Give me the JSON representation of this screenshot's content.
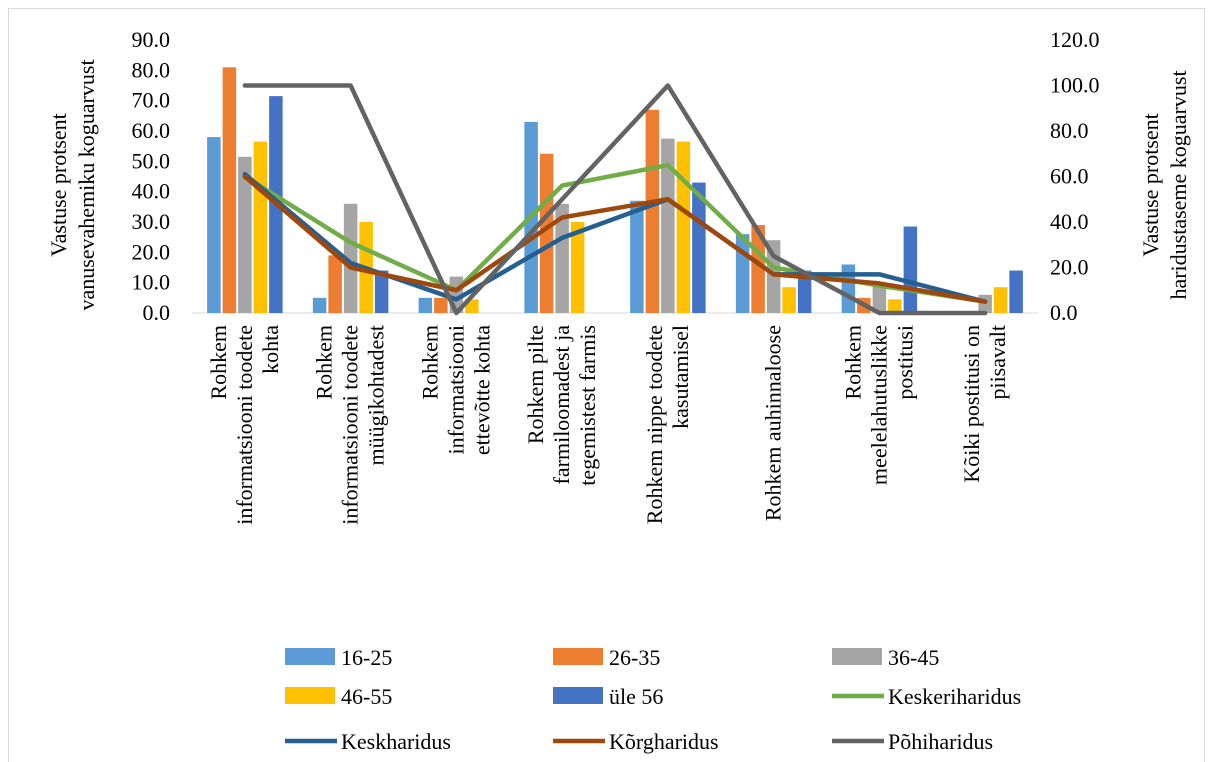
{
  "chart_data": {
    "type": "bar",
    "categories": [
      [
        "Rohkem",
        "informatsiooni toodete",
        "kohta"
      ],
      [
        "Rohkem",
        "informatsiooni toodete",
        "müügikohtadest"
      ],
      [
        "Rohkem",
        "informatsiooni",
        "ettevõtte kohta"
      ],
      [
        "Rohkem pilte",
        "farmiloomadest ja",
        "tegemistest farmis"
      ],
      [
        "Rohkem nippe toodete",
        "kasutamisel"
      ],
      [
        "Rohkem auhinnaloose"
      ],
      [
        "Rohkem",
        "meelelahutuslikke",
        "postitusi"
      ],
      [
        "Kõiki postitusi on",
        "piisavalt"
      ]
    ],
    "y_left": {
      "label": [
        "Vastuse protsent",
        "vanusevahemiku koguarvust"
      ],
      "ticks": [
        "0.0",
        "10.0",
        "20.0",
        "30.0",
        "40.0",
        "50.0",
        "60.0",
        "70.0",
        "80.0",
        "90.0"
      ],
      "ylim": [
        0,
        90
      ]
    },
    "y_right": {
      "label": [
        "Vastuse protsent",
        "haridustaseme koguarvust"
      ],
      "ticks": [
        "0.0",
        "20.0",
        "40.0",
        "60.0",
        "80.0",
        "100.0",
        "120.0"
      ],
      "ylim": [
        0,
        120
      ]
    },
    "bar_series": [
      {
        "name": "16-25",
        "color": "#5B9BD5",
        "values": [
          58,
          5,
          5,
          63,
          37,
          26,
          16,
          0
        ]
      },
      {
        "name": "26-35",
        "color": "#ED7D31",
        "values": [
          81,
          19,
          5,
          52.5,
          67,
          29,
          5,
          0
        ]
      },
      {
        "name": "36-45",
        "color": "#A5A5A5",
        "values": [
          51.5,
          36,
          12,
          36,
          57.5,
          24,
          9,
          6
        ]
      },
      {
        "name": "46-55",
        "color": "#FFC000",
        "values": [
          56.5,
          30,
          4.5,
          30,
          56.5,
          8.5,
          4.5,
          8.5
        ]
      },
      {
        "name": "üle 56",
        "color": "#4472C4",
        "values": [
          71.5,
          14,
          0,
          0,
          43,
          14,
          28.5,
          14
        ]
      }
    ],
    "line_series": [
      {
        "name": "Keskeriharidus",
        "color": "#70AD47",
        "axis": "right",
        "values": [
          60,
          31,
          10,
          56,
          65,
          20,
          12,
          5
        ]
      },
      {
        "name": "Keskharidus",
        "color": "#255E91",
        "axis": "right",
        "values": [
          61,
          22,
          6,
          33,
          50,
          17,
          17,
          5
        ]
      },
      {
        "name": "Kõrgharidus",
        "color": "#9E480E",
        "axis": "right",
        "values": [
          60,
          20,
          10,
          42,
          50,
          17,
          13,
          5
        ]
      },
      {
        "name": "Põhiharidus",
        "color": "#636363",
        "axis": "right",
        "values": [
          100,
          100,
          0,
          50,
          100,
          25,
          0,
          0
        ]
      }
    ],
    "legend": {
      "placement": "bottom",
      "rows": [
        [
          "16-25",
          "26-35",
          "36-45"
        ],
        [
          "46-55",
          "üle 56",
          "Keskeriharidus"
        ],
        [
          "Keskharidus",
          "Kõrgharidus",
          "Põhiharidus"
        ]
      ]
    }
  }
}
